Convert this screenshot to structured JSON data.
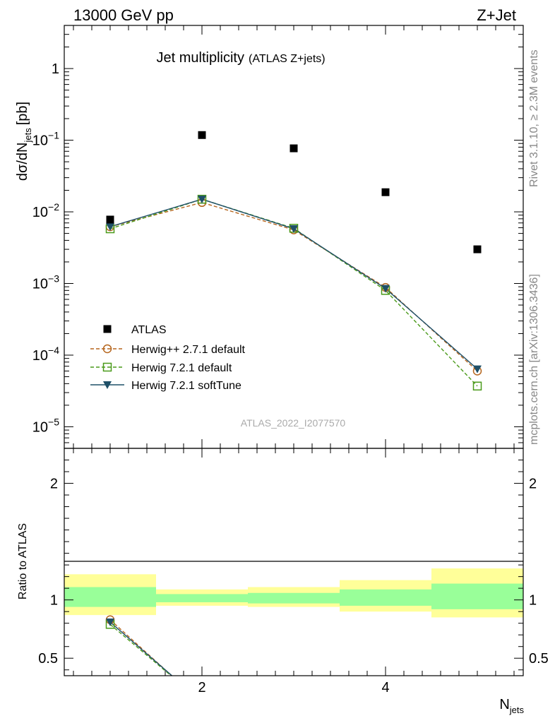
{
  "header": {
    "left": "13000 GeV pp",
    "right": "Z+Jet"
  },
  "side": {
    "top": "Rivet 3.1.10, ≥ 2.3M events",
    "bottom": "mcplots.cern.ch [arXiv:1306.3436]"
  },
  "chart_data": [
    {
      "type": "scatter",
      "title": "Jet multiplicity",
      "subtitle": "(ATLAS Z+jets)",
      "analysis_id": "ATLAS_2022_I2077570",
      "ylabel": "dσ/dN",
      "ylabel_sub": "jets",
      "ylabel_unit": "[pb]",
      "yscale": "log",
      "ylim": [
        5e-06,
        4.0
      ],
      "xlim": [
        0.5,
        5.5
      ],
      "y_ticks": [
        {
          "value": 1,
          "label": "1",
          "base": "1",
          "exp": ""
        },
        {
          "value": 0.1,
          "label": "10^-1",
          "base": "10",
          "exp": "−1"
        },
        {
          "value": 0.01,
          "label": "10^-2",
          "base": "10",
          "exp": "−2"
        },
        {
          "value": 0.001,
          "label": "10^-3",
          "base": "10",
          "exp": "−3"
        },
        {
          "value": 0.0001,
          "label": "10^-4",
          "base": "10",
          "exp": "−4"
        },
        {
          "value": 1e-05,
          "label": "10^-5",
          "base": "10",
          "exp": "−5"
        }
      ],
      "legend_position": "lower-left",
      "series": [
        {
          "name": "ATLAS",
          "style": "square-filled",
          "color": "#000000",
          "x": [
            1,
            2,
            3,
            4,
            5
          ],
          "y": [
            0.0078,
            0.118,
            0.077,
            0.0188,
            0.003
          ]
        },
        {
          "name": "Herwig++ 2.7.1 default",
          "style": "circle-open-dashed",
          "color": "#b5651d",
          "x": [
            1,
            2,
            3,
            4,
            5
          ],
          "y": [
            0.0062,
            0.0135,
            0.0056,
            0.00088,
            6e-05
          ]
        },
        {
          "name": "Herwig 7.2.1 default",
          "style": "square-open-dashed",
          "color": "#4a9a1a",
          "x": [
            1,
            2,
            3,
            4,
            5
          ],
          "y": [
            0.0058,
            0.015,
            0.0059,
            0.0008,
            3.7e-05
          ]
        },
        {
          "name": "Herwig 7.2.1 softTune",
          "style": "triangle-down-solid",
          "color": "#1f5068",
          "x": [
            1,
            2,
            3,
            4,
            5
          ],
          "y": [
            0.0062,
            0.015,
            0.0058,
            0.00085,
            6.4e-05
          ]
        }
      ]
    },
    {
      "type": "line",
      "ylabel": "Ratio to ATLAS",
      "xlabel": "N",
      "xlabel_sub": "jets",
      "ylim": [
        0.35,
        2.3
      ],
      "xlim": [
        0.5,
        5.5
      ],
      "x_ticks": [
        {
          "value": 2,
          "label": "2"
        },
        {
          "value": 4,
          "label": "4"
        }
      ],
      "y_ticks": [
        {
          "value": 0.5,
          "label": "0.5"
        },
        {
          "value": 1,
          "label": "1"
        },
        {
          "value": 2,
          "label": "2"
        }
      ],
      "bands": [
        {
          "x0": 0.5,
          "x1": 1.5,
          "inner": [
            0.94,
            1.11
          ],
          "outer": [
            0.87,
            1.22
          ]
        },
        {
          "x0": 1.5,
          "x1": 2.5,
          "inner": [
            0.98,
            1.05
          ],
          "outer": [
            0.95,
            1.09
          ]
        },
        {
          "x0": 2.5,
          "x1": 3.5,
          "inner": [
            0.97,
            1.06
          ],
          "outer": [
            0.94,
            1.11
          ]
        },
        {
          "x0": 3.5,
          "x1": 4.5,
          "inner": [
            0.95,
            1.09
          ],
          "outer": [
            0.9,
            1.17
          ]
        },
        {
          "x0": 4.5,
          "x1": 5.5,
          "inner": [
            0.92,
            1.14
          ],
          "outer": [
            0.85,
            1.27
          ]
        }
      ],
      "band_colors": {
        "inner": "#99ff99",
        "outer": "#ffff99"
      },
      "series": [
        {
          "name": "Herwig++ 2.7.1 default",
          "x": [
            1,
            2
          ],
          "y": [
            0.83,
            0.114
          ],
          "color": "#b5651d",
          "style": "circle-open-dashed"
        },
        {
          "name": "Herwig 7.2.1 default",
          "x": [
            1,
            2
          ],
          "y": [
            0.79,
            0.127
          ],
          "color": "#4a9a1a",
          "style": "square-open-dashed"
        },
        {
          "name": "Herwig 7.2.1 softTune",
          "x": [
            1,
            2
          ],
          "y": [
            0.81,
            0.127
          ],
          "color": "#1f5068",
          "style": "triangle-down-solid"
        }
      ]
    }
  ]
}
